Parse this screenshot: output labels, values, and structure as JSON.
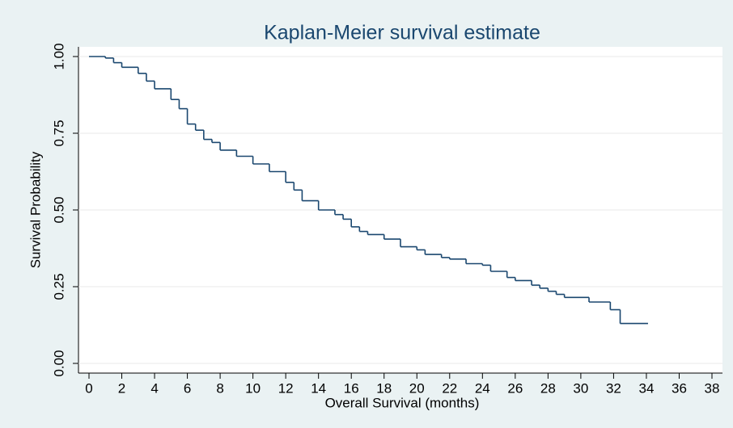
{
  "chart_data": {
    "type": "km_step",
    "title": "Kaplan-Meier survival estimate",
    "x_label": "Overall Survival (months)",
    "y_label": "Survival Probability",
    "color": "#1a476f",
    "grid": true,
    "xlim": [
      0,
      38
    ],
    "ylim": [
      0,
      1
    ],
    "xticks": [
      0,
      2,
      4,
      6,
      8,
      10,
      12,
      14,
      16,
      18,
      20,
      22,
      24,
      26,
      28,
      30,
      32,
      34,
      36,
      38
    ],
    "yticks": [
      {
        "value": 0,
        "label": "0.00"
      },
      {
        "value": 0.25,
        "label": "0.25"
      },
      {
        "value": 0.5,
        "label": "0.50"
      },
      {
        "value": 0.75,
        "label": "0.75"
      },
      {
        "value": 1,
        "label": "1.00"
      }
    ],
    "x": [
      0,
      1,
      1.5,
      2,
      3,
      3.5,
      4,
      5,
      5.5,
      6,
      6.5,
      7,
      7.5,
      8,
      9,
      10,
      11,
      12,
      12.5,
      13,
      14,
      15,
      15.5,
      16,
      16.5,
      17,
      18,
      19,
      20,
      20.5,
      21.5,
      22,
      23,
      24,
      24.5,
      25.5,
      26,
      27,
      27.5,
      28,
      28.5,
      29,
      30.5,
      31.8,
      32.4,
      34.1
    ],
    "values": [
      1.0,
      0.995,
      0.98,
      0.965,
      0.945,
      0.92,
      0.895,
      0.86,
      0.83,
      0.78,
      0.76,
      0.73,
      0.72,
      0.695,
      0.675,
      0.65,
      0.625,
      0.59,
      0.565,
      0.53,
      0.5,
      0.485,
      0.47,
      0.445,
      0.43,
      0.42,
      0.405,
      0.38,
      0.37,
      0.355,
      0.345,
      0.34,
      0.325,
      0.32,
      0.3,
      0.28,
      0.27,
      0.255,
      0.245,
      0.235,
      0.225,
      0.215,
      0.2,
      0.175,
      0.13,
      0.13
    ]
  }
}
